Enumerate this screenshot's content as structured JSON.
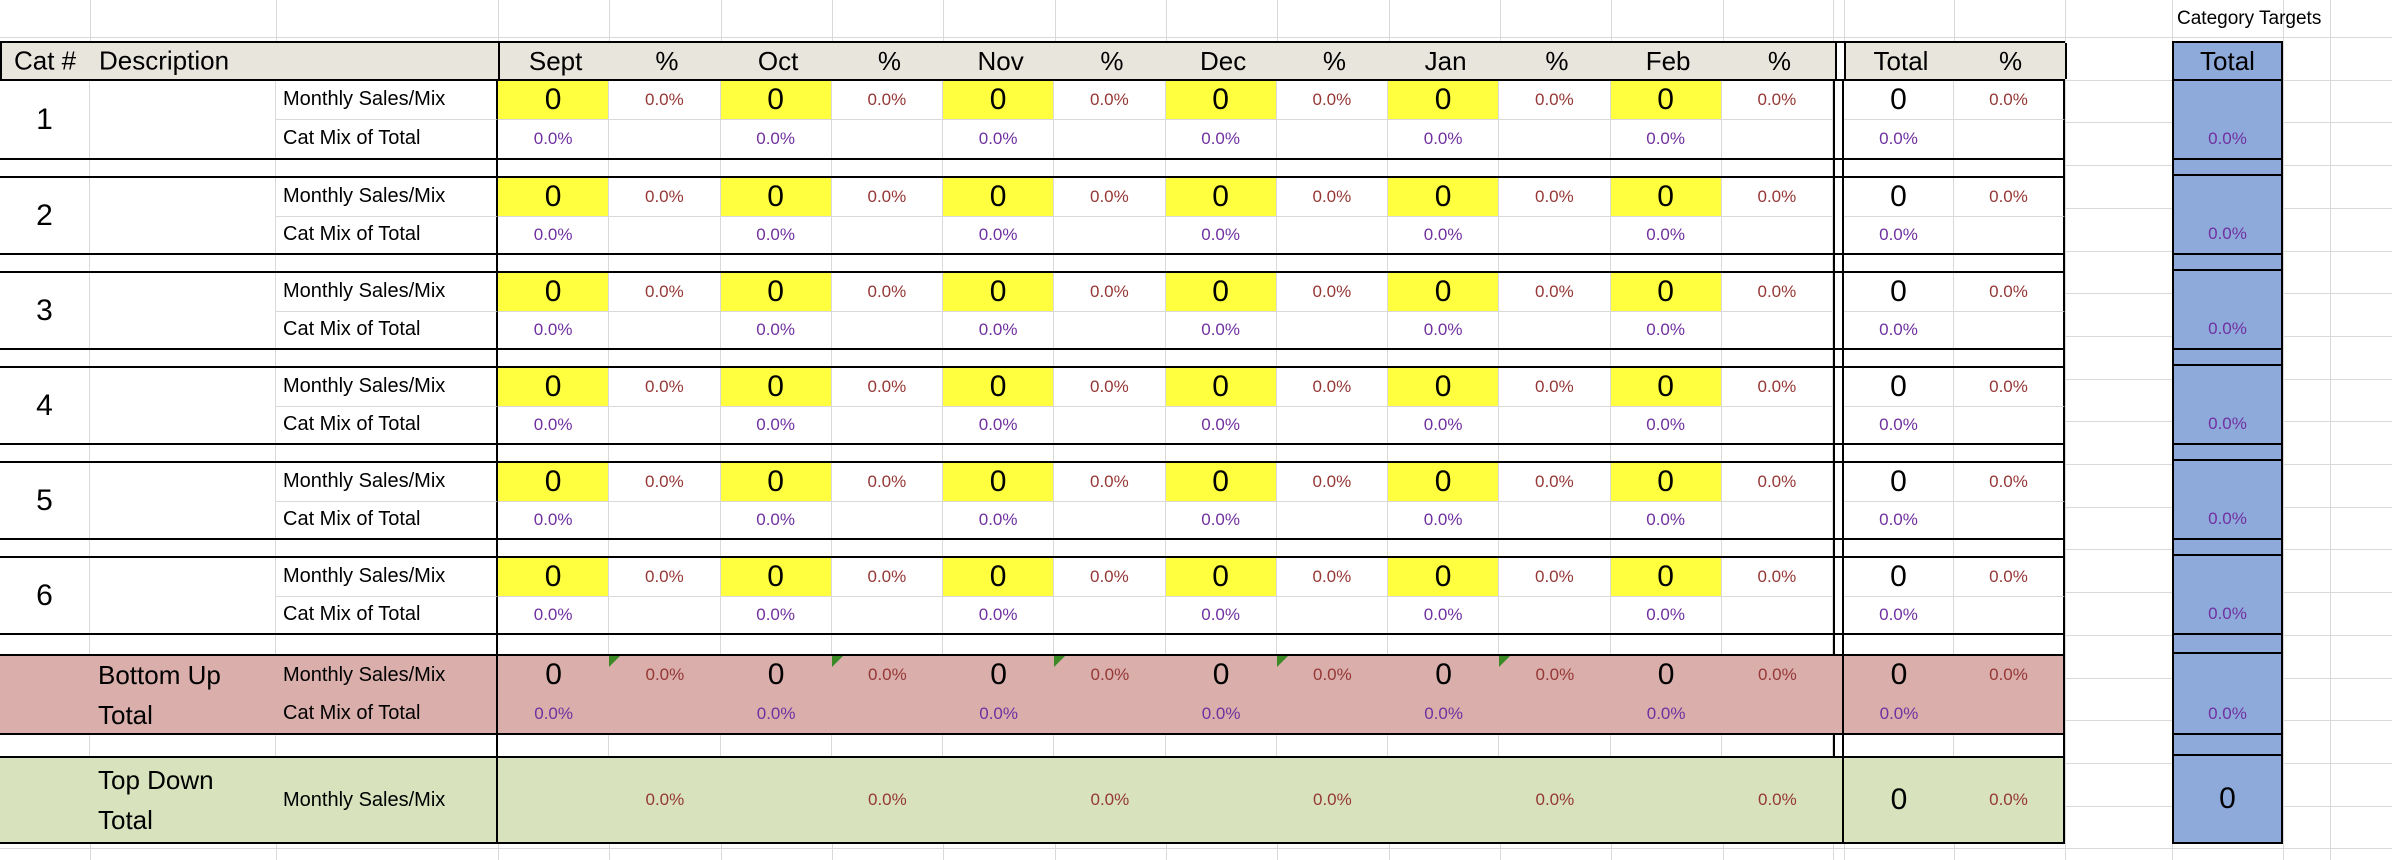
{
  "header": {
    "cat_label": "Cat #",
    "description_label": "Description",
    "months": [
      "Sept",
      "Oct",
      "Nov",
      "Dec",
      "Jan",
      "Feb"
    ],
    "percent_label": "%",
    "total_label": "Total"
  },
  "row_labels": {
    "monthly": "Monthly Sales/Mix",
    "mix": "Cat Mix of Total"
  },
  "categories": [
    {
      "number": "1",
      "description": "",
      "monthly_values": [
        "0",
        "0",
        "0",
        "0",
        "0",
        "0"
      ],
      "monthly_pcts": [
        "0.0%",
        "0.0%",
        "0.0%",
        "0.0%",
        "0.0%",
        "0.0%"
      ],
      "mix_pcts": [
        "0.0%",
        "0.0%",
        "0.0%",
        "0.0%",
        "0.0%",
        "0.0%"
      ],
      "total_value": "0",
      "total_pct": "0.0%",
      "total_mix_pct": "0.0%",
      "target_pct": "0.0%"
    },
    {
      "number": "2",
      "description": "",
      "monthly_values": [
        "0",
        "0",
        "0",
        "0",
        "0",
        "0"
      ],
      "monthly_pcts": [
        "0.0%",
        "0.0%",
        "0.0%",
        "0.0%",
        "0.0%",
        "0.0%"
      ],
      "mix_pcts": [
        "0.0%",
        "0.0%",
        "0.0%",
        "0.0%",
        "0.0%",
        "0.0%"
      ],
      "total_value": "0",
      "total_pct": "0.0%",
      "total_mix_pct": "0.0%",
      "target_pct": "0.0%"
    },
    {
      "number": "3",
      "description": "",
      "monthly_values": [
        "0",
        "0",
        "0",
        "0",
        "0",
        "0"
      ],
      "monthly_pcts": [
        "0.0%",
        "0.0%",
        "0.0%",
        "0.0%",
        "0.0%",
        "0.0%"
      ],
      "mix_pcts": [
        "0.0%",
        "0.0%",
        "0.0%",
        "0.0%",
        "0.0%",
        "0.0%"
      ],
      "total_value": "0",
      "total_pct": "0.0%",
      "total_mix_pct": "0.0%",
      "target_pct": "0.0%"
    },
    {
      "number": "4",
      "description": "",
      "monthly_values": [
        "0",
        "0",
        "0",
        "0",
        "0",
        "0"
      ],
      "monthly_pcts": [
        "0.0%",
        "0.0%",
        "0.0%",
        "0.0%",
        "0.0%",
        "0.0%"
      ],
      "mix_pcts": [
        "0.0%",
        "0.0%",
        "0.0%",
        "0.0%",
        "0.0%",
        "0.0%"
      ],
      "total_value": "0",
      "total_pct": "0.0%",
      "total_mix_pct": "0.0%",
      "target_pct": "0.0%"
    },
    {
      "number": "5",
      "description": "",
      "monthly_values": [
        "0",
        "0",
        "0",
        "0",
        "0",
        "0"
      ],
      "monthly_pcts": [
        "0.0%",
        "0.0%",
        "0.0%",
        "0.0%",
        "0.0%",
        "0.0%"
      ],
      "mix_pcts": [
        "0.0%",
        "0.0%",
        "0.0%",
        "0.0%",
        "0.0%",
        "0.0%"
      ],
      "total_value": "0",
      "total_pct": "0.0%",
      "total_mix_pct": "0.0%",
      "target_pct": "0.0%"
    },
    {
      "number": "6",
      "description": "",
      "monthly_values": [
        "0",
        "0",
        "0",
        "0",
        "0",
        "0"
      ],
      "monthly_pcts": [
        "0.0%",
        "0.0%",
        "0.0%",
        "0.0%",
        "0.0%",
        "0.0%"
      ],
      "mix_pcts": [
        "0.0%",
        "0.0%",
        "0.0%",
        "0.0%",
        "0.0%",
        "0.0%"
      ],
      "total_value": "0",
      "total_pct": "0.0%",
      "total_mix_pct": "0.0%",
      "target_pct": "0.0%"
    }
  ],
  "bottom_up": {
    "label_line1": "Bottom Up",
    "label_line2": "Total",
    "monthly_label": "Monthly Sales/Mix",
    "mix_label": "Cat Mix of Total",
    "monthly_values": [
      "0",
      "0",
      "0",
      "0",
      "0",
      "0"
    ],
    "monthly_pcts": [
      "0.0%",
      "0.0%",
      "0.0%",
      "0.0%",
      "0.0%",
      "0.0%"
    ],
    "mix_pcts": [
      "0.0%",
      "0.0%",
      "0.0%",
      "0.0%",
      "0.0%",
      "0.0%"
    ],
    "flagged_pct_cells": [
      0,
      1,
      2,
      3,
      4
    ],
    "total_value": "0",
    "total_pct": "0.0%",
    "total_mix_pct": "0.0%",
    "target_pct": "0.0%"
  },
  "top_down": {
    "label_line1": "Top Down",
    "label_line2": "Total",
    "monthly_label": "Monthly Sales/Mix",
    "monthly_pcts": [
      "0.0%",
      "0.0%",
      "0.0%",
      "0.0%",
      "0.0%",
      "0.0%"
    ],
    "total_value": "0",
    "total_pct": "0.0%",
    "target_value": "0"
  },
  "targets_panel": {
    "title": "Category Targets",
    "column_header": "Total"
  },
  "colors": {
    "header_bg": "#e8e5dc",
    "input_yellow": "#ffff40",
    "bottom_up_bg": "#d9aeab",
    "top_down_bg": "#d8e3be",
    "target_blue": "#8eaadb",
    "pct_red": "#953735",
    "mix_purple": "#7030a0",
    "flag_green": "#3c8a26",
    "gridline": "#d9d9d9"
  }
}
